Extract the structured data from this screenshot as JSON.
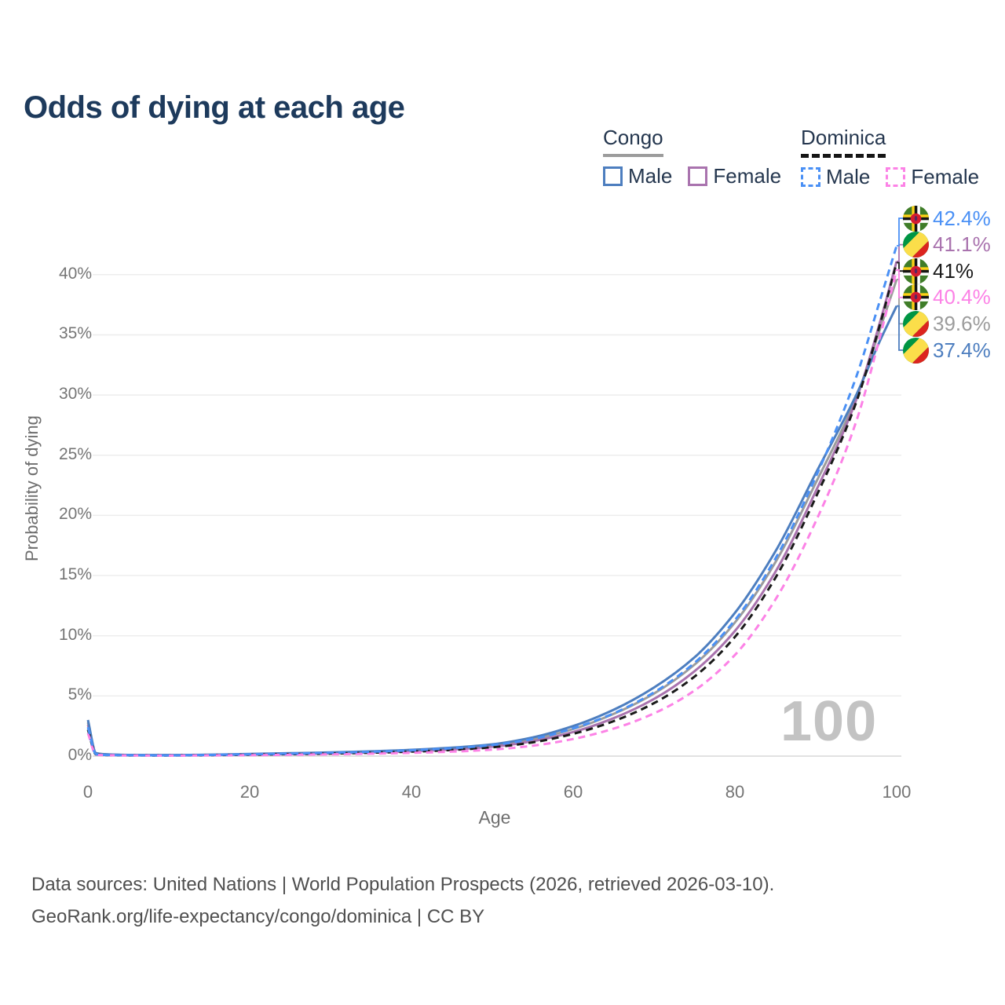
{
  "title": "Odds of dying at each age",
  "legend": {
    "groups": [
      {
        "label": "Congo",
        "style": "solid",
        "items": [
          {
            "label": "Male",
            "color": "#4d7ebf"
          },
          {
            "label": "Female",
            "color": "#a973ae"
          }
        ]
      },
      {
        "label": "Dominica",
        "style": "dashed",
        "items": [
          {
            "label": "Male",
            "color": "#4a90f5"
          },
          {
            "label": "Female",
            "color": "#fc82e6"
          }
        ]
      }
    ]
  },
  "watermark": "100",
  "footer": {
    "line1": "Data sources: United Nations | World Population Prospects (2026, retrieved 2026-03-10).",
    "line2": "GeoRank.org/life-expectancy/congo/dominica | CC BY"
  },
  "chart_data": {
    "type": "line",
    "title": "Odds of dying at each age",
    "xlabel": "Age",
    "ylabel": "Probability of dying",
    "xlim": [
      0,
      100
    ],
    "ylim_pct": [
      0,
      44
    ],
    "grid": "horizontal",
    "x_ticks": [
      {
        "value": 0,
        "label": "0"
      },
      {
        "value": 20,
        "label": "20"
      },
      {
        "value": 40,
        "label": "40"
      },
      {
        "value": 60,
        "label": "60"
      },
      {
        "value": 80,
        "label": "80"
      },
      {
        "value": 100,
        "label": "100"
      }
    ],
    "y_ticks": [
      {
        "value": 0,
        "label": "0%"
      },
      {
        "value": 5,
        "label": "5%"
      },
      {
        "value": 10,
        "label": "10%"
      },
      {
        "value": 15,
        "label": "15%"
      },
      {
        "value": 20,
        "label": "20%"
      },
      {
        "value": 25,
        "label": "25%"
      },
      {
        "value": 30,
        "label": "30%"
      },
      {
        "value": 35,
        "label": "35%"
      },
      {
        "value": 40,
        "label": "40%"
      }
    ],
    "ages": [
      0,
      1,
      2,
      5,
      10,
      15,
      20,
      25,
      30,
      35,
      40,
      45,
      50,
      55,
      60,
      65,
      70,
      75,
      80,
      85,
      90,
      95,
      98,
      100
    ],
    "series": [
      {
        "id": "congo-both",
        "name": "Congo Both sexes",
        "country": "Congo",
        "sex": "Both",
        "color": "#9c9c9c",
        "dashed": false,
        "flag": "congo",
        "end_label": "39.6%",
        "end_value": 39.6,
        "label_color": "#9c9c9c",
        "label_rank": 4,
        "values": [
          2.8,
          0.24,
          0.15,
          0.09,
          0.08,
          0.11,
          0.16,
          0.21,
          0.28,
          0.36,
          0.47,
          0.63,
          0.89,
          1.4,
          2.25,
          3.5,
          5.2,
          7.6,
          11.1,
          16.1,
          22.7,
          29.8,
          35.6,
          39.6
        ]
      },
      {
        "id": "congo-female",
        "name": "Congo Female",
        "country": "Congo",
        "sex": "Female",
        "color": "#a973ae",
        "dashed": false,
        "flag": "congo",
        "end_label": "41.1%",
        "end_value": 41.1,
        "label_color": "#a973ae",
        "label_rank": 1,
        "values": [
          2.6,
          0.22,
          0.14,
          0.09,
          0.07,
          0.09,
          0.13,
          0.17,
          0.23,
          0.3,
          0.4,
          0.55,
          0.78,
          1.24,
          2.0,
          3.15,
          4.75,
          7.05,
          10.4,
          15.3,
          22.0,
          29.6,
          36.2,
          41.1
        ]
      },
      {
        "id": "congo-male",
        "name": "Congo Male",
        "country": "Congo",
        "sex": "Male",
        "color": "#4d7ebf",
        "dashed": false,
        "flag": "congo",
        "end_label": "37.4%",
        "end_value": 37.4,
        "label_color": "#4d7ebf",
        "label_rank": 5,
        "values": [
          3.0,
          0.25,
          0.16,
          0.1,
          0.09,
          0.12,
          0.18,
          0.24,
          0.31,
          0.4,
          0.52,
          0.7,
          0.98,
          1.55,
          2.5,
          3.85,
          5.7,
          8.2,
          11.9,
          17.0,
          23.5,
          30.0,
          34.6,
          37.4
        ]
      },
      {
        "id": "dominica-both",
        "name": "Dominica Both sexes",
        "country": "Dominica",
        "sex": "Both",
        "color": "#1a1a1a",
        "dashed": true,
        "flag": "dominica",
        "end_label": "41%",
        "end_value": 41.0,
        "label_color": "#1a1a1a",
        "label_rank": 2,
        "values": [
          2.2,
          0.14,
          0.09,
          0.06,
          0.05,
          0.08,
          0.12,
          0.16,
          0.21,
          0.28,
          0.37,
          0.51,
          0.73,
          1.14,
          1.85,
          2.9,
          4.4,
          6.6,
          9.9,
          14.8,
          21.5,
          29.4,
          36.0,
          41.0
        ]
      },
      {
        "id": "dominica-female",
        "name": "Dominica Female",
        "country": "Dominica",
        "sex": "Female",
        "color": "#fc82e6",
        "dashed": true,
        "flag": "dominica",
        "end_label": "40.4%",
        "end_value": 40.4,
        "label_color": "#fc82e6",
        "label_rank": 3,
        "values": [
          1.9,
          0.12,
          0.08,
          0.05,
          0.04,
          0.06,
          0.08,
          0.11,
          0.15,
          0.2,
          0.27,
          0.37,
          0.54,
          0.86,
          1.42,
          2.28,
          3.55,
          5.45,
          8.4,
          13.0,
          19.5,
          27.8,
          35.0,
          40.4
        ]
      },
      {
        "id": "dominica-male",
        "name": "Dominica Male",
        "country": "Dominica",
        "sex": "Male",
        "color": "#4a90f5",
        "dashed": true,
        "flag": "dominica",
        "end_label": "42.4%",
        "end_value": 42.4,
        "label_color": "#4a90f5",
        "label_rank": 0,
        "values": [
          2.4,
          0.16,
          0.1,
          0.07,
          0.06,
          0.1,
          0.15,
          0.21,
          0.28,
          0.36,
          0.48,
          0.65,
          0.92,
          1.42,
          2.3,
          3.55,
          5.3,
          7.75,
          11.3,
          16.4,
          23.2,
          31.5,
          38.0,
          42.4
        ]
      }
    ]
  }
}
